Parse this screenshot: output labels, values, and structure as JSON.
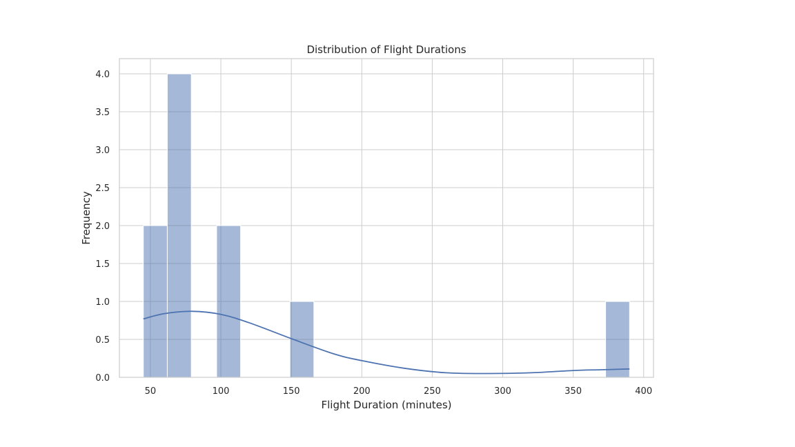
{
  "chart_data": {
    "type": "bar",
    "title": "Distribution of Flight Durations",
    "xlabel": "Flight Duration (minutes)",
    "ylabel": "Frequency",
    "xlim": [
      28,
      407
    ],
    "ylim": [
      0,
      4.2
    ],
    "xticks": [
      50,
      100,
      150,
      200,
      250,
      300,
      350,
      400
    ],
    "xtick_labels": [
      "50",
      "100",
      "150",
      "200",
      "250",
      "300",
      "350",
      "400"
    ],
    "yticks": [
      0,
      0.5,
      1,
      1.5,
      2,
      2.5,
      3,
      3.5,
      4
    ],
    "ytick_labels": [
      "0.0",
      "0.5",
      "1.0",
      "1.5",
      "2.0",
      "2.5",
      "3.0",
      "3.5",
      "4.0"
    ],
    "grid": true,
    "histogram_bins": [
      {
        "start": 45,
        "end": 62,
        "count": 2
      },
      {
        "start": 62,
        "end": 79,
        "count": 4
      },
      {
        "start": 97,
        "end": 114,
        "count": 2
      },
      {
        "start": 149,
        "end": 166,
        "count": 1
      },
      {
        "start": 373,
        "end": 390,
        "count": 1
      }
    ],
    "kde_curve": {
      "x": [
        45,
        60,
        80,
        100,
        120,
        150,
        180,
        200,
        230,
        260,
        290,
        320,
        350,
        370,
        390
      ],
      "y": [
        0.77,
        0.84,
        0.87,
        0.83,
        0.72,
        0.51,
        0.31,
        0.22,
        0.12,
        0.06,
        0.05,
        0.06,
        0.09,
        0.1,
        0.11
      ]
    },
    "colors": {
      "bar": "#4c72b0",
      "bar_opacity": 0.5,
      "kde": "#4c72b0"
    }
  }
}
